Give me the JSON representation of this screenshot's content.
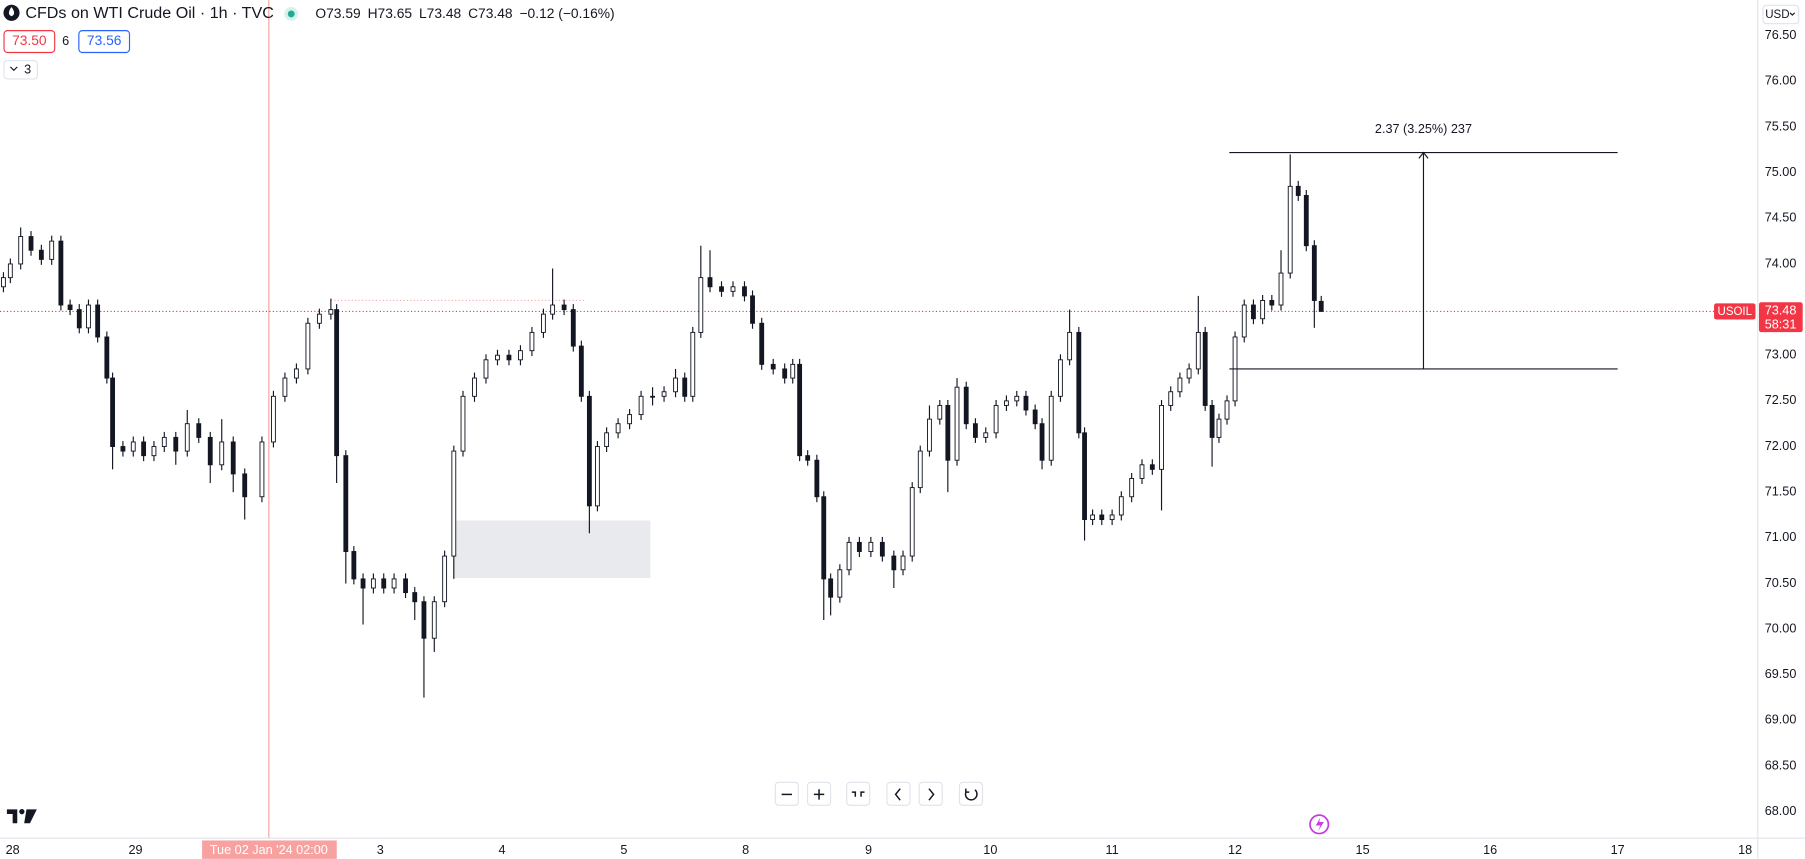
{
  "chart_data": {
    "type": "candlestick",
    "title": "CFDs on WTI Crude Oil · 1h · TVC",
    "ohlc_legend": [
      "O73.59",
      "H73.65",
      "L73.48",
      "C73.48",
      "−0.12 (−0.16%)"
    ],
    "bid": "73.50",
    "spread": "6",
    "ask": "73.56",
    "indicators": "3",
    "currency": "USD",
    "up_color": "#ffffff",
    "down_color": "#131722",
    "border_color": "#131722",
    "x": [
      0,
      6,
      15,
      24,
      33,
      42,
      50,
      58,
      66,
      74,
      82,
      90,
      95,
      104,
      113,
      122,
      131,
      140,
      150,
      160,
      170,
      180,
      190,
      200,
      210,
      225,
      235,
      245,
      255,
      265,
      275,
      285,
      290,
      298,
      305,
      313,
      322,
      331,
      340,
      350,
      358,
      366,
      375,
      384,
      392,
      400,
      410,
      420,
      430,
      440,
      450,
      460,
      470,
      478,
      488,
      496,
      503,
      510,
      517,
      525,
      535,
      545,
      555,
      565,
      575,
      585,
      593,
      600,
      607,
      615,
      625,
      635,
      645,
      652,
      660,
      670,
      680,
      687,
      693,
      700,
      708,
      714,
      720,
      728,
      736,
      745,
      755,
      765,
      775,
      783,
      791,
      798,
      806,
      815,
      822,
      830,
      838,
      846,
      855,
      864,
      873,
      882,
      890,
      898,
      904,
      912,
      920,
      928,
      936,
      941,
      948,
      956,
      965,
      973,
      982,
      991,
      1000,
      1008,
      1016,
      1024,
      1032,
      1040,
      1046,
      1052,
      1058,
      1065,
      1072,
      1080,
      1088,
      1096,
      1104,
      1112,
      1120,
      1127,
      1134,
      1141,
      1147
    ],
    "open": [
      73.75,
      73.85,
      74.0,
      74.3,
      74.15,
      74.05,
      74.25,
      73.55,
      73.5,
      73.3,
      73.55,
      73.2,
      72.75,
      72.0,
      71.95,
      72.05,
      71.9,
      72.0,
      72.1,
      71.95,
      72.25,
      72.1,
      71.8,
      72.05,
      71.7,
      71.45,
      72.05,
      72.55,
      72.75,
      72.85,
      73.35,
      73.45,
      73.5,
      71.9,
      70.85,
      70.55,
      70.45,
      70.55,
      70.45,
      70.55,
      70.4,
      70.3,
      69.9,
      70.3,
      70.8,
      71.95,
      72.55,
      72.75,
      72.95,
      73.0,
      72.95,
      73.05,
      73.25,
      73.45,
      73.55,
      73.5,
      73.1,
      72.55,
      71.35,
      72.0,
      72.15,
      72.25,
      72.35,
      72.55,
      72.55,
      72.6,
      72.75,
      72.55,
      73.25,
      73.85,
      73.75,
      73.7,
      73.75,
      73.65,
      73.35,
      72.9,
      72.85,
      72.75,
      72.9,
      71.9,
      71.85,
      71.45,
      70.55,
      70.35,
      70.65,
      70.95,
      70.85,
      70.95,
      70.8,
      70.65,
      70.8,
      71.55,
      71.95,
      72.3,
      72.45,
      71.85,
      72.65,
      72.25,
      72.1,
      72.15,
      72.45,
      72.5,
      72.55,
      72.4,
      72.25,
      71.85,
      72.55,
      72.95,
      73.25,
      72.15,
      71.2,
      71.25,
      71.2,
      71.25,
      71.45,
      71.65,
      71.8,
      71.75,
      72.45,
      72.6,
      72.75,
      72.85,
      73.25,
      72.45,
      72.1,
      72.3,
      72.5,
      73.2,
      73.55,
      73.4,
      73.6,
      73.55,
      73.9,
      74.85,
      74.75,
      74.2,
      73.59
    ],
    "high": [
      73.91,
      74.06,
      74.4,
      74.36,
      74.21,
      74.31,
      74.31,
      73.61,
      73.56,
      73.61,
      73.61,
      73.26,
      72.81,
      72.06,
      72.11,
      72.11,
      72.06,
      72.16,
      72.16,
      72.4,
      72.31,
      72.16,
      72.3,
      72.11,
      71.76,
      72.11,
      72.61,
      72.81,
      72.91,
      73.41,
      73.51,
      73.62,
      73.56,
      71.96,
      70.91,
      70.61,
      70.61,
      70.61,
      70.61,
      70.61,
      70.46,
      70.36,
      70.36,
      70.86,
      72.01,
      72.61,
      72.81,
      73.01,
      73.06,
      73.06,
      73.11,
      73.31,
      73.51,
      73.95,
      73.61,
      73.56,
      73.16,
      72.61,
      72.06,
      72.21,
      72.31,
      72.41,
      72.61,
      72.65,
      72.66,
      72.85,
      72.81,
      73.31,
      74.2,
      74.15,
      73.81,
      73.81,
      73.81,
      73.71,
      73.41,
      72.96,
      72.91,
      72.96,
      72.96,
      71.96,
      71.91,
      71.51,
      70.61,
      70.71,
      71.01,
      71.01,
      71.01,
      71.01,
      70.86,
      70.86,
      71.61,
      72.01,
      72.45,
      72.51,
      72.51,
      72.75,
      72.71,
      72.31,
      72.21,
      72.51,
      72.56,
      72.61,
      72.61,
      72.46,
      72.31,
      72.61,
      73.01,
      73.5,
      73.31,
      72.21,
      71.31,
      71.31,
      71.31,
      71.51,
      71.71,
      71.86,
      71.86,
      72.51,
      72.66,
      72.81,
      72.91,
      73.65,
      73.31,
      72.51,
      72.36,
      72.56,
      73.26,
      73.61,
      73.61,
      73.66,
      73.66,
      74.15,
      75.2,
      74.91,
      74.81,
      74.26,
      73.65
    ],
    "low": [
      73.69,
      73.79,
      73.94,
      74.09,
      73.99,
      73.99,
      73.49,
      73.44,
      73.24,
      73.24,
      73.14,
      72.69,
      71.75,
      71.89,
      71.89,
      71.84,
      71.84,
      71.94,
      71.8,
      71.89,
      72.04,
      71.6,
      71.74,
      71.5,
      71.2,
      71.39,
      71.99,
      72.49,
      72.69,
      72.79,
      73.29,
      73.39,
      71.6,
      70.5,
      70.49,
      70.05,
      70.39,
      70.39,
      70.39,
      70.34,
      70.1,
      69.25,
      69.75,
      70.24,
      70.55,
      71.89,
      72.49,
      72.69,
      72.89,
      72.89,
      72.89,
      72.99,
      73.19,
      73.39,
      73.44,
      73.04,
      72.49,
      71.05,
      71.29,
      71.94,
      72.09,
      72.19,
      72.29,
      72.45,
      72.49,
      72.54,
      72.49,
      72.49,
      73.19,
      73.69,
      73.64,
      73.64,
      73.59,
      73.29,
      72.84,
      72.79,
      72.69,
      72.69,
      71.84,
      71.79,
      71.39,
      70.1,
      70.15,
      70.29,
      70.59,
      70.79,
      70.79,
      70.74,
      70.45,
      70.59,
      70.74,
      71.49,
      71.89,
      72.24,
      71.5,
      71.79,
      72.19,
      72.04,
      72.04,
      72.09,
      72.39,
      72.44,
      72.34,
      72.19,
      71.75,
      71.79,
      72.49,
      72.89,
      72.09,
      70.97,
      71.14,
      71.14,
      71.14,
      71.19,
      71.39,
      71.59,
      71.69,
      71.3,
      72.39,
      72.54,
      72.69,
      72.79,
      72.39,
      71.78,
      72.04,
      72.24,
      72.44,
      73.14,
      73.34,
      73.34,
      73.49,
      73.49,
      73.84,
      74.69,
      74.14,
      73.3,
      73.48
    ],
    "close": [
      73.85,
      74.0,
      74.3,
      74.15,
      74.05,
      74.25,
      73.55,
      73.5,
      73.3,
      73.55,
      73.2,
      72.75,
      72.0,
      71.95,
      72.05,
      71.9,
      72.0,
      72.1,
      71.95,
      72.25,
      72.1,
      71.8,
      72.05,
      71.7,
      71.45,
      72.05,
      72.55,
      72.75,
      72.85,
      73.35,
      73.45,
      73.5,
      71.9,
      70.85,
      70.55,
      70.45,
      70.55,
      70.45,
      70.55,
      70.4,
      70.3,
      69.9,
      70.3,
      70.8,
      71.95,
      72.55,
      72.75,
      72.95,
      73.0,
      72.95,
      73.05,
      73.25,
      73.45,
      73.55,
      73.5,
      73.1,
      72.55,
      71.35,
      72.0,
      72.15,
      72.25,
      72.35,
      72.55,
      72.55,
      72.6,
      72.75,
      72.55,
      73.25,
      73.85,
      73.75,
      73.7,
      73.75,
      73.65,
      73.35,
      72.9,
      72.85,
      72.75,
      72.9,
      71.9,
      71.85,
      71.45,
      70.55,
      70.35,
      70.65,
      70.95,
      70.85,
      70.95,
      70.8,
      70.65,
      70.8,
      71.55,
      71.95,
      72.3,
      72.45,
      71.85,
      72.65,
      72.25,
      72.1,
      72.15,
      72.45,
      72.5,
      72.55,
      72.4,
      72.25,
      71.85,
      72.55,
      72.95,
      73.25,
      72.15,
      71.2,
      71.25,
      71.2,
      71.25,
      71.45,
      71.65,
      71.8,
      71.75,
      72.45,
      72.6,
      72.75,
      72.85,
      73.25,
      72.45,
      72.1,
      72.3,
      72.5,
      73.2,
      73.55,
      73.4,
      73.6,
      73.55,
      73.9,
      74.85,
      74.75,
      74.2,
      73.6,
      73.48
    ],
    "xlim": [
      -3,
      1527
    ],
    "ylim": [
      67.71,
      76.89
    ],
    "xticks": [
      {
        "value": 8,
        "label": "28"
      },
      {
        "value": 115,
        "label": "29"
      },
      {
        "value": 328,
        "label": "3"
      },
      {
        "value": 434,
        "label": "4"
      },
      {
        "value": 540,
        "label": "5"
      },
      {
        "value": 646,
        "label": "8"
      },
      {
        "value": 753,
        "label": "9"
      },
      {
        "value": 859,
        "label": "10"
      },
      {
        "value": 965,
        "label": "11"
      },
      {
        "value": 1072,
        "label": "12"
      },
      {
        "value": 1183,
        "label": "15"
      },
      {
        "value": 1294,
        "label": "16"
      },
      {
        "value": 1405,
        "label": "17"
      },
      {
        "value": 1516,
        "label": "18"
      }
    ],
    "yticks": [
      {
        "value": 68,
        "label": "68.00"
      },
      {
        "value": 68.5,
        "label": "68.50"
      },
      {
        "value": 69,
        "label": "69.00"
      },
      {
        "value": 69.5,
        "label": "69.50"
      },
      {
        "value": 70,
        "label": "70.00"
      },
      {
        "value": 70.5,
        "label": "70.50"
      },
      {
        "value": 71,
        "label": "71.00"
      },
      {
        "value": 71.5,
        "label": "71.50"
      },
      {
        "value": 72,
        "label": "72.00"
      },
      {
        "value": 72.5,
        "label": "72.50"
      },
      {
        "value": 73,
        "label": "73.00"
      },
      {
        "value": 73.5,
        "label": "73.50"
      },
      {
        "value": 74,
        "label": "74.00"
      },
      {
        "value": 74.5,
        "label": "74.50"
      },
      {
        "value": 75,
        "label": "75.00"
      },
      {
        "value": 75.5,
        "label": "75.50"
      },
      {
        "value": 76,
        "label": "76.00"
      },
      {
        "value": 76.5,
        "label": "76.50"
      }
    ],
    "last_price": {
      "value": 73.48,
      "symbol": "USOIL",
      "countdown": "58:31",
      "color": "#f23645"
    },
    "crosshair": {
      "x": 231,
      "label": "Tue 02 Jan '24 02:00"
    },
    "measure": {
      "label": "2.37 (3.25%) 237",
      "low": 72.85,
      "high": 75.22,
      "x0": 1067,
      "x1": 1405
    },
    "zone": {
      "top": 71.19,
      "bottom": 70.56,
      "x0": 392,
      "x1": 563
    },
    "level": {
      "value": 73.6,
      "x0": 285,
      "x1": 507
    }
  }
}
